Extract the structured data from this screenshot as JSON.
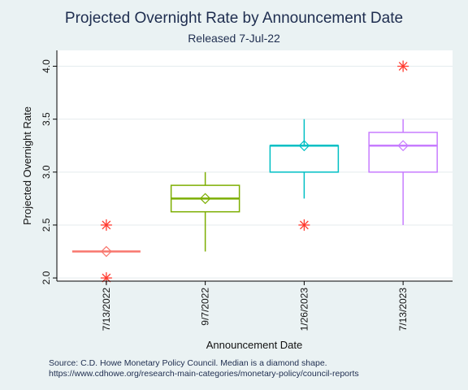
{
  "chart_data": {
    "type": "box",
    "title": "Projected Overnight Rate by Announcement Date",
    "subtitle": "Released 7-Jul-22",
    "xlabel": "Announcement Date",
    "ylabel": "Projected Overnight Rate",
    "ylim": [
      1.97,
      4.15
    ],
    "yticks": [
      {
        "value": 2.0,
        "label": "2.0"
      },
      {
        "value": 2.5,
        "label": "2.5"
      },
      {
        "value": 3.0,
        "label": "3.0"
      },
      {
        "value": 3.5,
        "label": "3.5"
      },
      {
        "value": 4.0,
        "label": "4.0"
      }
    ],
    "grid": true,
    "series": [
      {
        "category": "7/13/2022",
        "color": "#f8766d",
        "q1": 2.25,
        "median_line": 2.25,
        "q3": 2.25,
        "whisker_low": 2.25,
        "whisker_high": 2.25,
        "median_marker": 2.25,
        "outliers": [
          2.0,
          2.5
        ]
      },
      {
        "category": "9/7/2022",
        "color": "#7cae00",
        "q1": 2.625,
        "median_line": 2.75,
        "q3": 2.875,
        "whisker_low": 2.25,
        "whisker_high": 3.0,
        "median_marker": 2.75,
        "outliers": []
      },
      {
        "category": "1/26/2023",
        "color": "#00bfc4",
        "q1": 3.0,
        "median_line": 3.25,
        "q3": 3.25,
        "whisker_low": 2.75,
        "whisker_high": 3.5,
        "median_marker": 3.25,
        "outliers": [
          2.5
        ]
      },
      {
        "category": "7/13/2023",
        "color": "#c77cff",
        "q1": 3.0,
        "median_line": 3.25,
        "q3": 3.375,
        "whisker_low": 2.5,
        "whisker_high": 3.5,
        "median_marker": 3.25,
        "outliers": [
          4.0
        ]
      }
    ],
    "outlier_color": "#ff3b30",
    "notes": [
      "Source: C.D. Howe Monetary Policy Council. Median is a diamond shape.",
      "https://www.cdhowe.org/research-main-categories/monetary-policy/council-reports"
    ]
  }
}
